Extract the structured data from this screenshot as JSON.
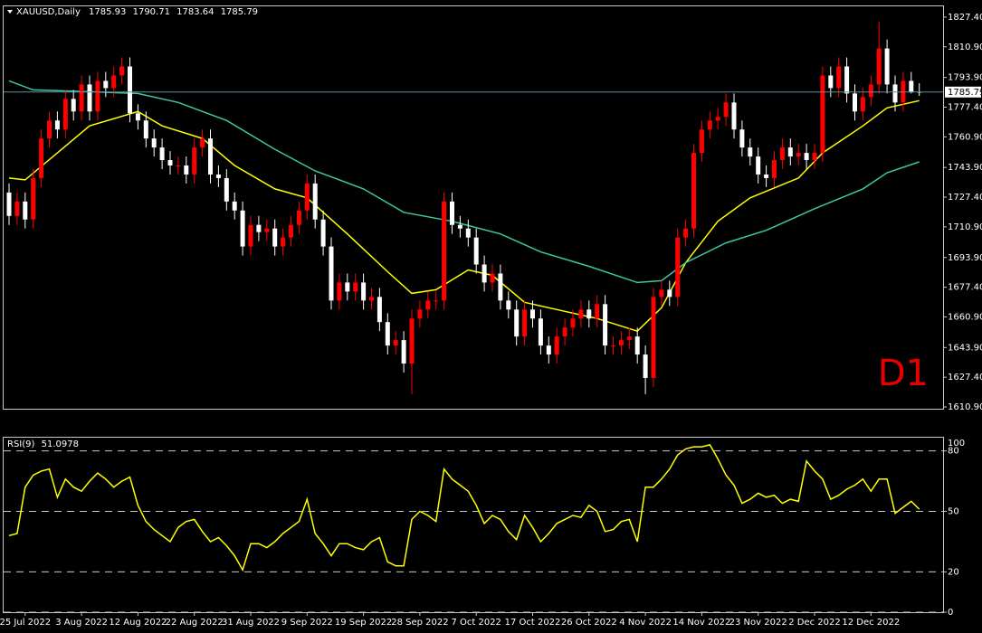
{
  "chart_data": [
    {
      "type": "candlestick",
      "title": "XAUUSD,Daily",
      "watermark": "D1",
      "up_color": "#ff0000",
      "down_color": "#ffffff",
      "last_line_color": "#5f8f9f",
      "categories": [
        null,
        null,
        "25 Jul 2022",
        null,
        null,
        null,
        null,
        null,
        null,
        "3 Aug 2022",
        null,
        null,
        null,
        null,
        null,
        null,
        "12 Aug 2022",
        null,
        null,
        null,
        null,
        null,
        null,
        "22 Aug 2022",
        null,
        null,
        null,
        null,
        null,
        null,
        "31 Aug 2022",
        null,
        null,
        null,
        null,
        null,
        null,
        "9 Sep 2022",
        null,
        null,
        null,
        null,
        null,
        null,
        "19 Sep 2022",
        null,
        null,
        null,
        null,
        null,
        null,
        "28 Sep 2022",
        null,
        null,
        null,
        null,
        null,
        null,
        "7 Oct 2022",
        null,
        null,
        null,
        null,
        null,
        null,
        "17 Oct 2022",
        null,
        null,
        null,
        null,
        null,
        null,
        "26 Oct 2022",
        null,
        null,
        null,
        null,
        null,
        null,
        "4 Nov 2022",
        null,
        null,
        null,
        null,
        null,
        null,
        "14 Nov 2022",
        null,
        null,
        null,
        null,
        null,
        null,
        "23 Nov 2022",
        null,
        null,
        null,
        null,
        null,
        null,
        "2 Dec 2022",
        null,
        null,
        null,
        null,
        null,
        null,
        "12 Dec 2022",
        null,
        null,
        null,
        null,
        null,
        null
      ],
      "open": [
        1730,
        1717,
        1725,
        1715,
        1738,
        1760,
        1770,
        1765,
        1782,
        1775,
        1790,
        1775,
        1792,
        1788,
        1795,
        1800,
        1774,
        1770,
        1760,
        1755,
        1748,
        1745,
        1745,
        1740,
        1755,
        1760,
        1740,
        1738,
        1725,
        1720,
        1700,
        1712,
        1708,
        1710,
        1700,
        1705,
        1712,
        1720,
        1735,
        1715,
        1700,
        1670,
        1680,
        1675,
        1680,
        1670,
        1672,
        1658,
        1645,
        1648,
        1635,
        1660,
        1665,
        1670,
        1670,
        1725,
        1712,
        1710,
        1705,
        1690,
        1680,
        1685,
        1670,
        1665,
        1650,
        1665,
        1660,
        1645,
        1640,
        1650,
        1655,
        1660,
        1665,
        1660,
        1668,
        1645,
        1645,
        1648,
        1650,
        1640,
        1627,
        1672,
        1676,
        1672,
        1705,
        1710,
        1752,
        1765,
        1770,
        1772,
        1780,
        1765,
        1755,
        1750,
        1740,
        1738,
        1748,
        1755,
        1750,
        1752,
        1748,
        1752,
        1795,
        1788,
        1800,
        1785,
        1775,
        1783,
        1790,
        1810,
        1790,
        1780,
        1792,
        1785.93
      ],
      "high": [
        1735,
        1730,
        1730,
        1743,
        1765,
        1775,
        1775,
        1787,
        1787,
        1795,
        1795,
        1797,
        1797,
        1800,
        1805,
        1805,
        1779,
        1775,
        1765,
        1760,
        1753,
        1750,
        1750,
        1760,
        1765,
        1765,
        1745,
        1743,
        1730,
        1725,
        1717,
        1717,
        1715,
        1715,
        1710,
        1717,
        1725,
        1740,
        1740,
        1720,
        1705,
        1685,
        1685,
        1685,
        1685,
        1677,
        1677,
        1663,
        1653,
        1653,
        1665,
        1670,
        1675,
        1675,
        1730,
        1730,
        1717,
        1715,
        1710,
        1695,
        1690,
        1690,
        1675,
        1670,
        1670,
        1670,
        1665,
        1650,
        1655,
        1660,
        1665,
        1670,
        1670,
        1673,
        1673,
        1650,
        1653,
        1655,
        1655,
        1645,
        1677,
        1681,
        1681,
        1710,
        1715,
        1757,
        1770,
        1775,
        1777,
        1785,
        1785,
        1770,
        1760,
        1755,
        1745,
        1753,
        1760,
        1760,
        1757,
        1757,
        1757,
        1800,
        1800,
        1805,
        1805,
        1790,
        1788,
        1795,
        1825,
        1815,
        1795,
        1797,
        1797,
        1790.71
      ],
      "low": [
        1712,
        1712,
        1710,
        1710,
        1733,
        1755,
        1760,
        1760,
        1770,
        1770,
        1770,
        1770,
        1783,
        1783,
        1790,
        1769,
        1765,
        1755,
        1750,
        1743,
        1740,
        1740,
        1735,
        1735,
        1750,
        1735,
        1733,
        1720,
        1715,
        1695,
        1695,
        1703,
        1703,
        1695,
        1695,
        1700,
        1707,
        1715,
        1710,
        1695,
        1665,
        1665,
        1670,
        1670,
        1665,
        1665,
        1653,
        1640,
        1640,
        1630,
        1618,
        1655,
        1660,
        1665,
        1665,
        1707,
        1705,
        1700,
        1685,
        1675,
        1675,
        1665,
        1660,
        1645,
        1645,
        1655,
        1640,
        1635,
        1635,
        1645,
        1650,
        1655,
        1655,
        1655,
        1640,
        1640,
        1640,
        1643,
        1635,
        1618,
        1622,
        1667,
        1667,
        1667,
        1700,
        1705,
        1747,
        1760,
        1765,
        1767,
        1760,
        1750,
        1745,
        1735,
        1733,
        1733,
        1743,
        1745,
        1745,
        1743,
        1743,
        1747,
        1783,
        1783,
        1780,
        1770,
        1770,
        1778,
        1785,
        1785,
        1775,
        1775,
        1785,
        1783.64
      ],
      "close": [
        1717,
        1725,
        1715,
        1738,
        1760,
        1770,
        1765,
        1782,
        1775,
        1790,
        1775,
        1792,
        1788,
        1795,
        1800,
        1774,
        1770,
        1760,
        1755,
        1748,
        1745,
        1745,
        1740,
        1755,
        1760,
        1740,
        1738,
        1725,
        1720,
        1700,
        1712,
        1708,
        1710,
        1700,
        1705,
        1712,
        1720,
        1735,
        1715,
        1700,
        1670,
        1680,
        1675,
        1680,
        1670,
        1672,
        1658,
        1645,
        1648,
        1635,
        1660,
        1665,
        1670,
        1670,
        1725,
        1712,
        1710,
        1705,
        1690,
        1680,
        1685,
        1670,
        1665,
        1650,
        1665,
        1660,
        1645,
        1640,
        1650,
        1655,
        1660,
        1665,
        1660,
        1668,
        1645,
        1645,
        1648,
        1650,
        1640,
        1627,
        1672,
        1676,
        1672,
        1705,
        1710,
        1752,
        1765,
        1770,
        1772,
        1780,
        1765,
        1755,
        1750,
        1740,
        1738,
        1748,
        1755,
        1750,
        1752,
        1748,
        1752,
        1795,
        1788,
        1800,
        1785,
        1775,
        1783,
        1790,
        1810,
        1790,
        1780,
        1792,
        1785.93,
        1785.79
      ],
      "series": [
        {
          "color": "#ffff00",
          "x": [
            0,
            2,
            6,
            10,
            16,
            19,
            24,
            28,
            33,
            37,
            42,
            47,
            50,
            53,
            57,
            60,
            64,
            69,
            73,
            78,
            81,
            84,
            88,
            92,
            98,
            101,
            106,
            109,
            113
          ],
          "values": [
            1738,
            1737,
            1752,
            1767,
            1775,
            1767,
            1760,
            1745,
            1732,
            1727,
            1707,
            1686,
            1674,
            1676,
            1687,
            1684,
            1669,
            1664,
            1660,
            1653,
            1666,
            1691,
            1714,
            1727,
            1738,
            1752,
            1767,
            1777,
            1781
          ]
        },
        {
          "color": "#3cc8a0",
          "x": [
            0,
            3,
            10,
            16,
            21,
            27,
            33,
            38,
            44,
            49,
            55,
            61,
            66,
            72,
            78,
            81,
            84,
            89,
            94,
            100,
            106,
            109,
            113
          ],
          "values": [
            1792,
            1787,
            1786,
            1785,
            1780,
            1770,
            1754,
            1742,
            1732,
            1719,
            1714,
            1707,
            1697,
            1689,
            1680,
            1681,
            1691,
            1702,
            1709,
            1721,
            1732,
            1741,
            1747
          ]
        }
      ],
      "ylim": [
        1609.9,
        1833.4
      ],
      "yticks": [
        {
          "value": 1827.4,
          "label": "1827.40"
        },
        {
          "value": 1810.9,
          "label": "1810.90"
        },
        {
          "value": 1793.9,
          "label": "1793.90"
        },
        {
          "value": 1777.4,
          "label": "1777.40"
        },
        {
          "value": 1760.9,
          "label": "1760.90"
        },
        {
          "value": 1743.9,
          "label": "1743.90"
        },
        {
          "value": 1727.4,
          "label": "1727.40"
        },
        {
          "value": 1710.9,
          "label": "1710.90"
        },
        {
          "value": 1693.9,
          "label": "1693.90"
        },
        {
          "value": 1677.4,
          "label": "1677.40"
        },
        {
          "value": 1660.9,
          "label": "1660.90"
        },
        {
          "value": 1643.9,
          "label": "1643.90"
        },
        {
          "value": 1627.4,
          "label": "1627.40"
        },
        {
          "value": 1610.9,
          "label": "1610.90"
        }
      ]
    },
    {
      "type": "line",
      "top_label": "100",
      "series": [
        {
          "name": "RSI(9)",
          "color": "#ffff00",
          "values": [
            38,
            39,
            62,
            68,
            70,
            71,
            57,
            66,
            62,
            60,
            65,
            69,
            66,
            62,
            65,
            67,
            53,
            45,
            41,
            38,
            35,
            42,
            45,
            46,
            40,
            35,
            37,
            33,
            28,
            21,
            34,
            34,
            32,
            35,
            39,
            42,
            45,
            56,
            39,
            34,
            28,
            34,
            34,
            32,
            31,
            35,
            37,
            25,
            23,
            23,
            46,
            50,
            48,
            45,
            71,
            66,
            63,
            60,
            53,
            44,
            48,
            46,
            40,
            36,
            48,
            42,
            35,
            39,
            44,
            46,
            48,
            47,
            53,
            50,
            40,
            41,
            45,
            46,
            35,
            62,
            62,
            66,
            71,
            78,
            81,
            82,
            82,
            83,
            76,
            68,
            63,
            54,
            56,
            59,
            57,
            58,
            54,
            56,
            55,
            75,
            70,
            66,
            56,
            58,
            61,
            63,
            66,
            60,
            66,
            66,
            49,
            52,
            55,
            51.0978
          ]
        }
      ],
      "ylim": [
        0,
        87
      ],
      "yticks": [
        0,
        20,
        50,
        80
      ],
      "grid": "dashed"
    }
  ]
}
